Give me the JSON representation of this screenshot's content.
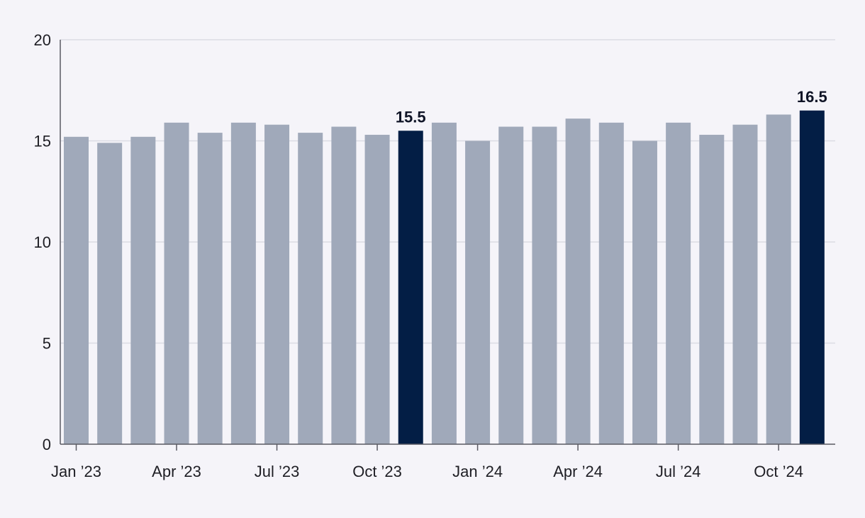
{
  "chart_data": {
    "type": "bar",
    "categories": [
      "Jan '23",
      "Feb '23",
      "Mar '23",
      "Apr '23",
      "May '23",
      "Jun '23",
      "Jul '23",
      "Aug '23",
      "Sep '23",
      "Oct '23",
      "Nov '23",
      "Dec '23",
      "Jan '24",
      "Feb '24",
      "Mar '24",
      "Apr '24",
      "May '24",
      "Jun '24",
      "Jul '24",
      "Aug '24",
      "Sep '24",
      "Oct '24",
      "Nov '24"
    ],
    "values": [
      15.2,
      14.9,
      15.2,
      15.9,
      15.4,
      15.9,
      15.8,
      15.4,
      15.7,
      15.3,
      15.5,
      15.9,
      15.0,
      15.7,
      15.7,
      16.1,
      15.9,
      15.0,
      15.9,
      15.3,
      15.8,
      16.3,
      16.5
    ],
    "highlighted": [
      "Nov '23",
      "Nov '24"
    ],
    "data_labels": [
      {
        "category": "Nov '23",
        "text": "15.5"
      },
      {
        "category": "Nov '24",
        "text": "16.5"
      }
    ],
    "x_tick_labels": [
      {
        "category": "Jan '23",
        "text": "Jan ’23"
      },
      {
        "category": "Apr '23",
        "text": "Apr ’23"
      },
      {
        "category": "Jul '23",
        "text": "Jul ’23"
      },
      {
        "category": "Oct '23",
        "text": "Oct ’23"
      },
      {
        "category": "Jan '24",
        "text": "Jan ’24"
      },
      {
        "category": "Apr '24",
        "text": "Apr ’24"
      },
      {
        "category": "Jul '24",
        "text": "Jul ’24"
      },
      {
        "category": "Oct '24",
        "text": "Oct ’24"
      }
    ],
    "y_ticks": [
      0,
      5,
      10,
      15,
      20
    ],
    "ylim": [
      0,
      20
    ],
    "title": "",
    "xlabel": "",
    "ylabel": "",
    "grid": true,
    "legend": "none",
    "colors": {
      "bar": "#a0a9ba",
      "highlight": "#031e45",
      "grid": "#dcdce4",
      "axis": "#5a5a63",
      "text": "#1e1e24",
      "background": "#f5f4f9"
    }
  }
}
